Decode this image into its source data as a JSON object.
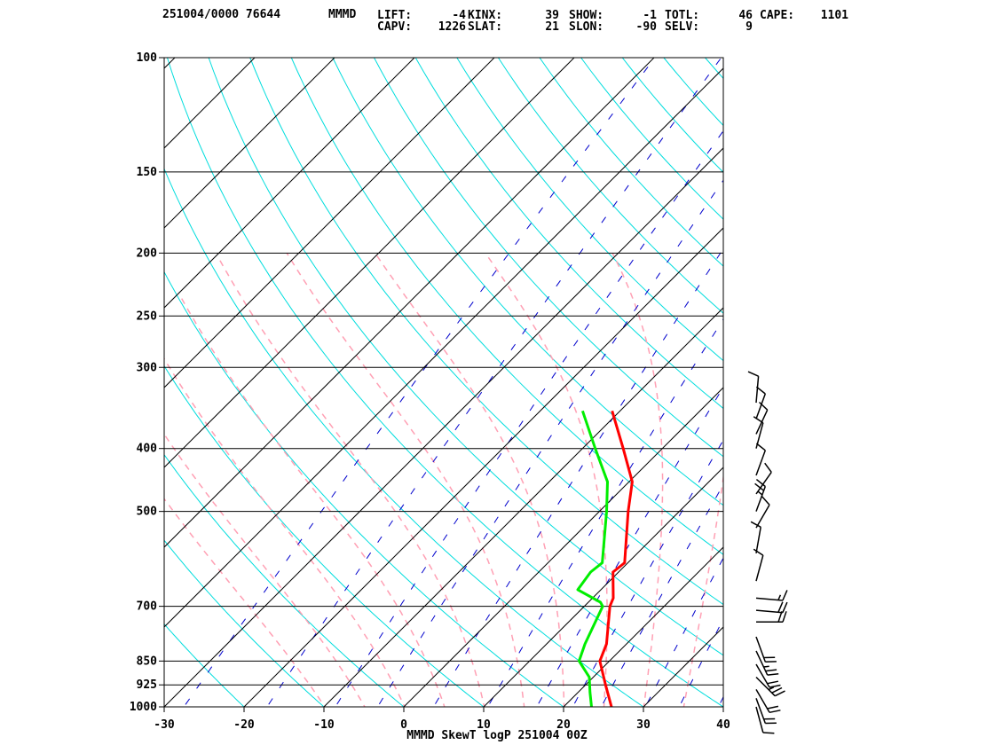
{
  "header": {
    "station_time": "251004/0000 76644",
    "station_id": "MMMD",
    "indices": [
      {
        "label": "LIFT:",
        "value": "-4"
      },
      {
        "label": "KINX:",
        "value": "39"
      },
      {
        "label": "SHOW:",
        "value": "-1"
      },
      {
        "label": "TOTL:",
        "value": "46"
      },
      {
        "label": "CAPE:",
        "value": "1101"
      },
      {
        "label": "CAPV:",
        "value": "1226"
      },
      {
        "label": "SLAT:",
        "value": "21"
      },
      {
        "label": "SLON:",
        "value": "-90"
      },
      {
        "label": "SELV:",
        "value": "9"
      }
    ]
  },
  "footer_title": "MMMD SkewT logP 251004 00Z",
  "colors": {
    "temperature": "#ff0000",
    "dewpoint": "#00ee00",
    "dry_adiabat": "#00dddd",
    "moist_adiabat": "#ffa0b4",
    "mixing_ratio": "#0000cc",
    "isotherm": "#000000",
    "isobar": "#000000"
  },
  "chart_data": {
    "type": "line",
    "title": "MMMD SkewT logP 251004 00Z",
    "x_axis": {
      "kind": "temperature",
      "range": [
        -30,
        40
      ],
      "ticks": [
        -30,
        -20,
        -10,
        0,
        10,
        20,
        30,
        40
      ]
    },
    "y_axis": {
      "kind": "pressure",
      "scale": "log",
      "range": [
        1000,
        100
      ],
      "ticks": [
        100,
        150,
        200,
        250,
        300,
        400,
        500,
        700,
        850,
        925,
        1000
      ]
    },
    "series": [
      {
        "name": "temperature",
        "points": [
          {
            "p": 1000,
            "t": 26.0
          },
          {
            "p": 925,
            "t": 22.5
          },
          {
            "p": 850,
            "t": 18.8
          },
          {
            "p": 800,
            "t": 17.5
          },
          {
            "p": 700,
            "t": 13.2
          },
          {
            "p": 680,
            "t": 12.6
          },
          {
            "p": 620,
            "t": 9.3
          },
          {
            "p": 600,
            "t": 9.6
          },
          {
            "p": 500,
            "t": 3.6
          },
          {
            "p": 450,
            "t": 0.4
          },
          {
            "p": 400,
            "t": -4.9
          },
          {
            "p": 350,
            "t": -11.0
          }
        ]
      },
      {
        "name": "dewpoint",
        "points": [
          {
            "p": 1000,
            "t": 23.5
          },
          {
            "p": 950,
            "t": 21.5
          },
          {
            "p": 900,
            "t": 19.5
          },
          {
            "p": 850,
            "t": 16.2
          },
          {
            "p": 800,
            "t": 14.8
          },
          {
            "p": 700,
            "t": 12.3
          },
          {
            "p": 690,
            "t": 11.5
          },
          {
            "p": 660,
            "t": 7.1
          },
          {
            "p": 620,
            "t": 6.5
          },
          {
            "p": 600,
            "t": 6.8
          },
          {
            "p": 500,
            "t": 0.9
          },
          {
            "p": 450,
            "t": -2.7
          },
          {
            "p": 400,
            "t": -8.4
          },
          {
            "p": 350,
            "t": -14.7
          }
        ]
      }
    ],
    "wind_barbs": [
      {
        "p": 1000,
        "dir": 165,
        "spd": 10
      },
      {
        "p": 970,
        "dir": 160,
        "spd": 20
      },
      {
        "p": 940,
        "dir": 150,
        "spd": 20
      },
      {
        "p": 900,
        "dir": 135,
        "spd": 25
      },
      {
        "p": 860,
        "dir": 150,
        "spd": 20
      },
      {
        "p": 820,
        "dir": 155,
        "spd": 25
      },
      {
        "p": 780,
        "dir": 160,
        "spd": 20
      },
      {
        "p": 740,
        "dir": 90,
        "spd": 20
      },
      {
        "p": 710,
        "dir": 95,
        "spd": 20
      },
      {
        "p": 680,
        "dir": 95,
        "spd": 15
      },
      {
        "p": 640,
        "dir": 15,
        "spd": 10
      },
      {
        "p": 580,
        "dir": 10,
        "spd": 10
      },
      {
        "p": 530,
        "dir": 30,
        "spd": 10
      },
      {
        "p": 500,
        "dir": 20,
        "spd": 25
      },
      {
        "p": 470,
        "dir": 35,
        "spd": 10
      },
      {
        "p": 440,
        "dir": 20,
        "spd": 10
      },
      {
        "p": 400,
        "dir": 15,
        "spd": 10
      },
      {
        "p": 380,
        "dir": 25,
        "spd": 10
      },
      {
        "p": 360,
        "dir": 20,
        "spd": 10
      },
      {
        "p": 340,
        "dir": 5,
        "spd": 10
      }
    ]
  }
}
